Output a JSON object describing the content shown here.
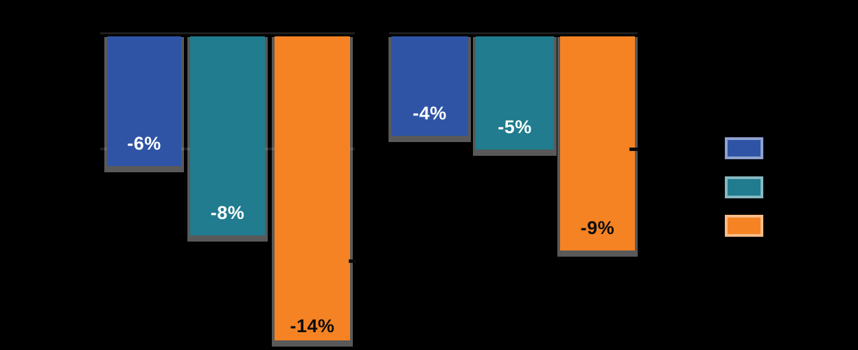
{
  "chart_data": {
    "type": "bar",
    "orientation": "vertical-negative",
    "unit": "%",
    "title": "",
    "ylim": [
      -15,
      0
    ],
    "baseline_value": 0,
    "gridline_values": [
      -5,
      -10
    ],
    "grid": "partial",
    "legend_position": "right",
    "panels": [
      {
        "values": [
          -6,
          -8,
          -14
        ],
        "labels": [
          "-6%",
          "-8%",
          "-14%"
        ]
      },
      {
        "values": [
          -4,
          -5,
          -9
        ],
        "labels": [
          "-4%",
          "-5%",
          "-9%"
        ]
      }
    ],
    "series_colors": [
      "#2f54a6",
      "#207c8e",
      "#f58323"
    ]
  },
  "colors": {
    "background": "#000000",
    "series_blue": "#2f54a6",
    "series_teal": "#207c8e",
    "series_orange": "#f58323",
    "axis_line": "#1e1e1e",
    "tick_mark": "#0a0a0a",
    "label_light": "#ffffff",
    "label_dark": "#0d0d0d"
  },
  "legend": {
    "swatch_colors": [
      "#2f54a6",
      "#207c8e",
      "#f58323"
    ]
  }
}
